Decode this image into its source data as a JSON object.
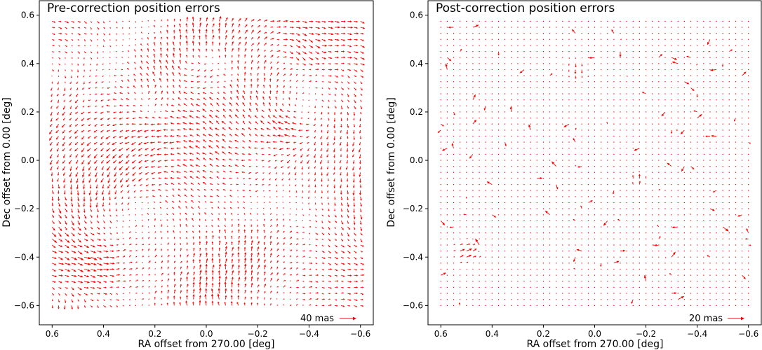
{
  "chart_data": [
    {
      "type": "quiver",
      "title": "Pre-correction position errors",
      "xlabel": "RA offset from 270.00 [deg]",
      "ylabel": "Dec offset from 0.00 [deg]",
      "xlim": [
        0.65,
        -0.65
      ],
      "ylim": [
        -0.68,
        0.66
      ],
      "xticks": [
        0.6,
        0.4,
        0.2,
        0.0,
        -0.2,
        -0.4,
        -0.6
      ],
      "xtick_labels": [
        "0.6",
        "0.4",
        "0.2",
        "0.0",
        "−0.2",
        "−0.4",
        "−0.6"
      ],
      "yticks": [
        0.6,
        0.4,
        0.2,
        0.0,
        -0.2,
        -0.4,
        -0.6
      ],
      "ytick_labels": [
        "0.6",
        "0.4",
        "0.2",
        "0.0",
        "−0.2",
        "−0.4",
        "−0.6"
      ],
      "grid": false,
      "arrow_color": "#ff0000",
      "grid_points": {
        "x_range": [
          0.6,
          -0.6
        ],
        "y_range": [
          -0.6,
          0.58
        ],
        "spacing_deg": 0.025
      },
      "field_model": "pre_correction",
      "seed": 11,
      "key": {
        "label": "40 mas",
        "magnitude_mas": 40
      }
    },
    {
      "type": "quiver",
      "title": "Post-correction position errors",
      "xlabel": "RA offset from 270.00 [deg]",
      "ylabel": "Dec offset from 0.00 [deg]",
      "xlim": [
        0.65,
        -0.65
      ],
      "ylim": [
        -0.68,
        0.66
      ],
      "xticks": [
        0.6,
        0.4,
        0.2,
        0.0,
        -0.2,
        -0.4,
        -0.6
      ],
      "xtick_labels": [
        "0.6",
        "0.4",
        "0.2",
        "0.0",
        "−0.2",
        "−0.4",
        "−0.6"
      ],
      "yticks": [
        0.6,
        0.4,
        0.2,
        0.0,
        -0.2,
        -0.4,
        -0.6
      ],
      "ytick_labels": [
        "0.6",
        "0.4",
        "0.2",
        "0.0",
        "−0.2",
        "−0.4",
        "−0.6"
      ],
      "grid": false,
      "arrow_color": "#ff0000",
      "grid_points": {
        "x_range": [
          0.6,
          -0.6
        ],
        "y_range": [
          -0.6,
          0.58
        ],
        "spacing_deg": 0.025
      },
      "field_model": "post_correction",
      "seed": 29,
      "key": {
        "label": "20 mas",
        "magnitude_mas": 20
      }
    }
  ]
}
